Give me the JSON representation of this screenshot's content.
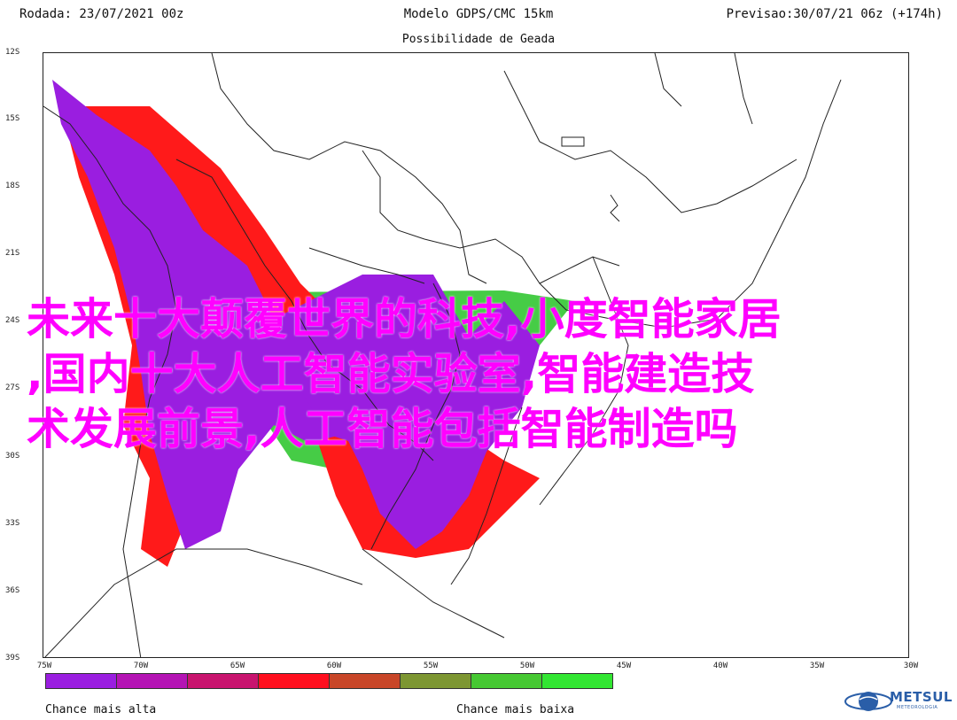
{
  "header": {
    "left": "Rodada: 23/07/2021 00z",
    "center": "Modelo GDPS/CMC 15km",
    "right": "Previsao:30/07/21 06z (+174h)",
    "subtitle": "Possibilidade de Geada"
  },
  "map": {
    "lat_labels": [
      "12S",
      "15S",
      "18S",
      "21S",
      "24S",
      "27S",
      "30S",
      "33S",
      "36S",
      "39S"
    ],
    "lon_labels": [
      "75W",
      "70W",
      "65W",
      "60W",
      "55W",
      "50W",
      "45W",
      "40W",
      "35W",
      "30W"
    ],
    "extent": {
      "lon_min": -75,
      "lon_max": -30,
      "lat_min": -39,
      "lat_max": -12
    },
    "colors": {
      "border": "#222222",
      "high": "#9a1ee0",
      "medium": "#ff1a1a",
      "low": "#3cc93c"
    }
  },
  "legend": {
    "high_label": "Chance mais alta",
    "low_label": "Chance mais baixa",
    "colors": [
      "#9a1ee0",
      "#b414b4",
      "#c8146e",
      "#ff0f1e",
      "#c84628",
      "#7d9632",
      "#46c832",
      "#32e632"
    ]
  },
  "logo": {
    "name": "METSUL",
    "sub": "METEOROLOGIA"
  },
  "overlay": {
    "lines": [
      "未来十大颠覆世界的科技,小度智能家居",
      ",国内十大人工智能实验室,智能建造技",
      "术发展前景,人工智能包括智能制造吗"
    ]
  }
}
